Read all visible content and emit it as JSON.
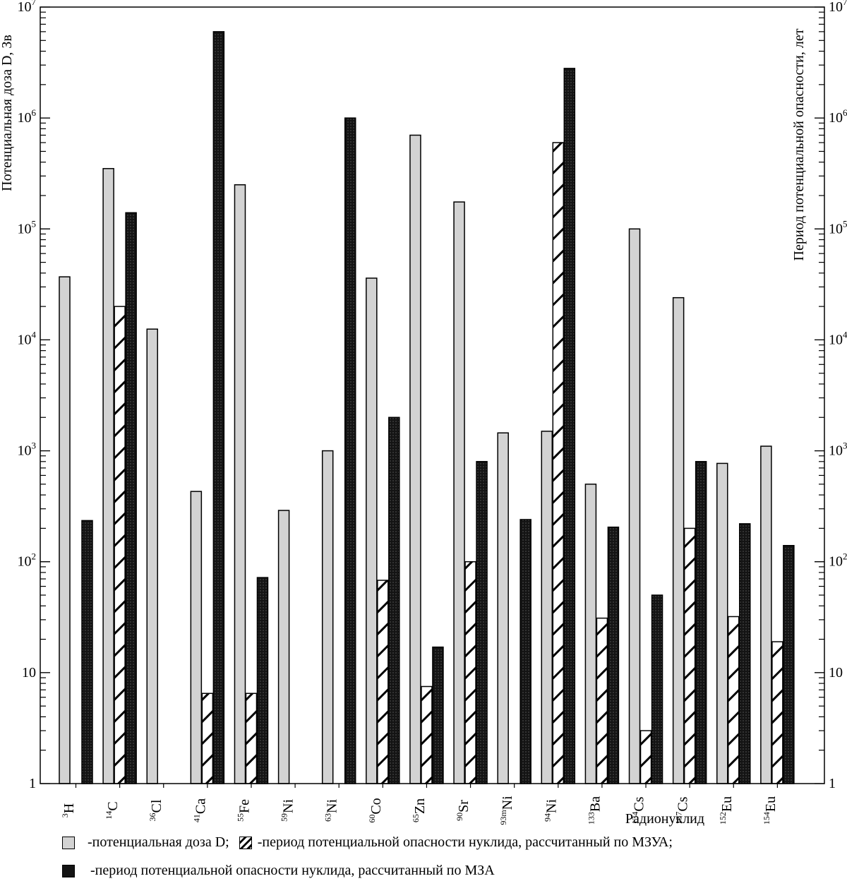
{
  "chart_data": {
    "type": "bar",
    "scale": "log",
    "ylim": [
      1,
      10000000
    ],
    "ylabel_left": "Потенциальная доза D, Зв",
    "ylabel_right": "Период потенциальной опасности, лет",
    "xlabel": "Радионуклид",
    "y_ticks": [
      {
        "value": 1,
        "label": "1",
        "exp": ""
      },
      {
        "value": 10,
        "label": "10",
        "exp": ""
      },
      {
        "value": 100,
        "label": "10",
        "exp": "2"
      },
      {
        "value": 1000,
        "label": "10",
        "exp": "3"
      },
      {
        "value": 10000,
        "label": "10",
        "exp": "4"
      },
      {
        "value": 100000,
        "label": "10",
        "exp": "5"
      },
      {
        "value": 1000000,
        "label": "10",
        "exp": "6"
      },
      {
        "value": 10000000,
        "label": "10",
        "exp": "7"
      }
    ],
    "categories": [
      {
        "mass": "3",
        "symbol": "H"
      },
      {
        "mass": "14",
        "symbol": "C"
      },
      {
        "mass": "36",
        "symbol": "Cl"
      },
      {
        "mass": "41",
        "symbol": "Ca"
      },
      {
        "mass": "55",
        "symbol": "Fe"
      },
      {
        "mass": "59",
        "symbol": "Ni"
      },
      {
        "mass": "63",
        "symbol": "Ni"
      },
      {
        "mass": "60",
        "symbol": "Co"
      },
      {
        "mass": "65",
        "symbol": "Zn"
      },
      {
        "mass": "90",
        "symbol": "Sr"
      },
      {
        "mass": "93m",
        "symbol": "Ni"
      },
      {
        "mass": "94",
        "symbol": "Ni"
      },
      {
        "mass": "133",
        "symbol": "Ba"
      },
      {
        "mass": "134",
        "symbol": "Cs"
      },
      {
        "mass": "137",
        "symbol": "Cs"
      },
      {
        "mass": "152",
        "symbol": "Eu"
      },
      {
        "mass": "154",
        "symbol": "Eu"
      }
    ],
    "series": [
      {
        "name": "-потенциальная доза D;",
        "style": "gray",
        "values": [
          37000,
          350000,
          12500,
          430,
          250000,
          290,
          1000,
          36000,
          700000,
          175000,
          1450,
          1500,
          500,
          100000,
          24000,
          770,
          1100
        ]
      },
      {
        "name": "-период потенциальной опасности нуклида, рассчитанный по МЗУА;",
        "style": "hatch",
        "values": [
          null,
          20000,
          null,
          6.5,
          6.5,
          null,
          null,
          68,
          7.5,
          100,
          null,
          600000,
          31,
          3,
          200,
          32,
          19
        ]
      },
      {
        "name": "-период потенциальной опасности нуклида, рассчитанный по МЗА",
        "style": "dark",
        "values": [
          235,
          140000,
          null,
          6000000,
          72,
          null,
          1000000,
          2000,
          17,
          800,
          240,
          2800000,
          205,
          50,
          800,
          220,
          140
        ]
      }
    ],
    "colors": {
      "gray": "#d3d3d3",
      "dark": "#141414",
      "outline": "#000000"
    }
  },
  "legend": {
    "dose": "-потенциальная доза D;",
    "mzua": "-период потенциальной опасности нуклида, рассчитанный по МЗУА;",
    "mza": "-период потенциальной опасности нуклида, рассчитанный по МЗА"
  }
}
